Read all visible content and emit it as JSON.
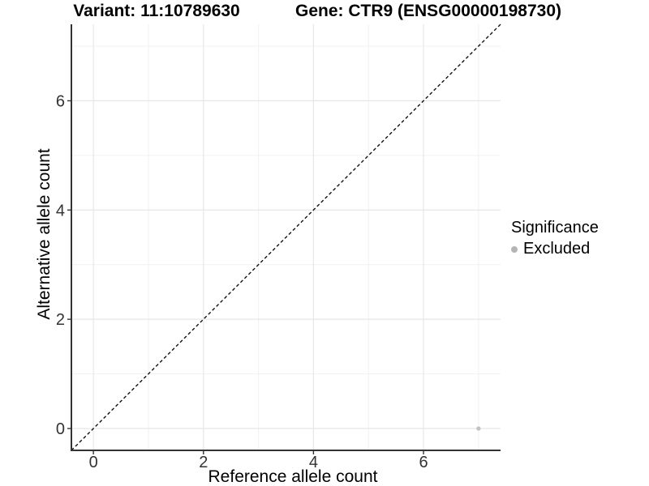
{
  "chart_data": {
    "type": "scatter",
    "title_left": "Variant: 11:10789630",
    "title_right": "Gene: CTR9 (ENSG00000198730)",
    "xlabel": "Reference allele count",
    "ylabel": "Alternative allele count",
    "xlim": [
      -0.4,
      7.4
    ],
    "ylim": [
      -0.4,
      7.4
    ],
    "x_ticks": [
      0,
      2,
      4,
      6
    ],
    "y_ticks": [
      0,
      2,
      4,
      6
    ],
    "minor_gridlines": [
      1,
      3,
      5,
      7
    ],
    "grid": true,
    "identity_line": {
      "style": "dashed",
      "slope": 1,
      "intercept": 0
    },
    "series": [
      {
        "name": "Excluded",
        "color": "#c2c2c2",
        "points": [
          {
            "x": 7,
            "y": 0
          }
        ]
      }
    ],
    "legend": {
      "title": "Significance",
      "position": "right",
      "items": [
        {
          "label": "Excluded",
          "color": "#b5b5b5"
        }
      ]
    }
  },
  "colors": {
    "background": "#ffffff",
    "axis_line": "#333333",
    "tick_label": "#333333",
    "grid_major": "#e7e7e7",
    "grid_minor": "#f1f1f1",
    "identity_line": "#111111",
    "point": "#c2c2c2",
    "legend_point": "#b5b5b5",
    "text": "#000000"
  }
}
